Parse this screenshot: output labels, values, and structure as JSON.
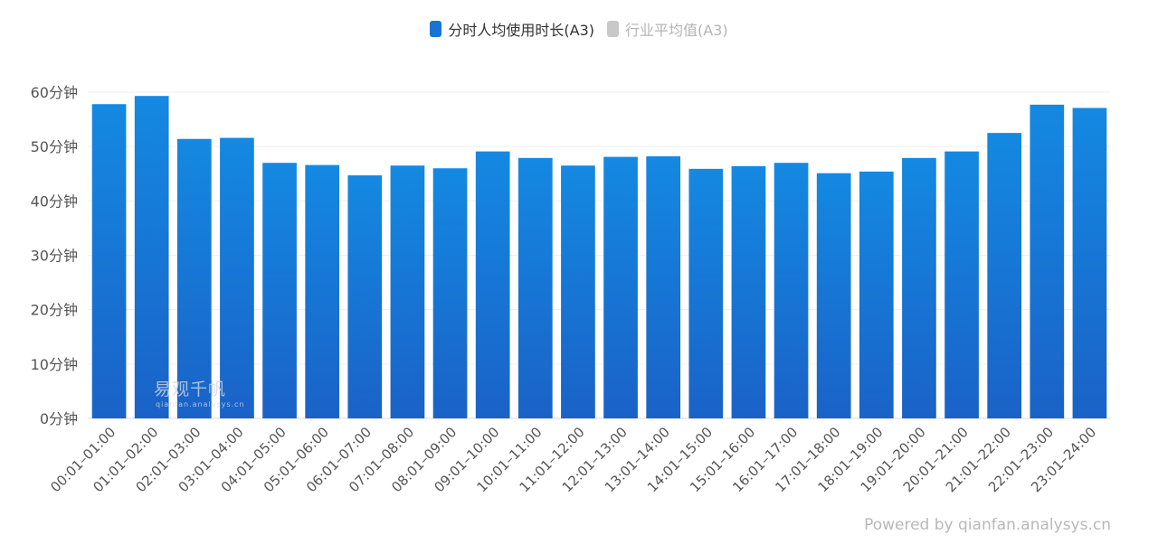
{
  "legend": {
    "items": [
      {
        "label": "分时人均使用时长(A3)",
        "color": "#1a72d6",
        "active": true
      },
      {
        "label": "行业平均值(A3)",
        "color": "#c8c8c8",
        "active": false
      }
    ]
  },
  "watermark": {
    "text": "易观千帆",
    "subtext": "qianfan.analysys.cn"
  },
  "footer": {
    "powered": "Powered by qianfan.analysys.cn"
  },
  "chart_data": {
    "type": "bar",
    "title": "",
    "xlabel": "",
    "ylabel": "",
    "ylim": [
      0,
      60
    ],
    "ytick_values": [
      0,
      10,
      20,
      30,
      40,
      50,
      60
    ],
    "ytick_labels": [
      "0分钟",
      "10分钟",
      "20分钟",
      "30分钟",
      "40分钟",
      "50分钟",
      "60分钟"
    ],
    "categories": [
      "00:01–01:00",
      "01:01–02:00",
      "02:01–03:00",
      "03:01–04:00",
      "04:01–05:00",
      "05:01–06:00",
      "06:01–07:00",
      "07:01–08:00",
      "08:01–09:00",
      "09:01–10:00",
      "10:01–11:00",
      "11:01–12:00",
      "12:01–13:00",
      "13:01–14:00",
      "14:01–15:00",
      "15:01–16:00",
      "16:01–17:00",
      "17:01–18:00",
      "18:01–19:00",
      "19:01–20:00",
      "20:01–21:00",
      "21:01–22:00",
      "22:01–23:00",
      "23:01–24:00"
    ],
    "series": [
      {
        "name": "分时人均使用时长(A3)",
        "values": [
          57.8,
          59.3,
          51.4,
          51.6,
          47.0,
          46.6,
          44.7,
          46.5,
          46.0,
          49.1,
          47.9,
          46.5,
          48.1,
          48.2,
          45.9,
          46.4,
          47.0,
          45.1,
          45.4,
          47.9,
          49.1,
          52.5,
          57.7,
          57.1
        ]
      }
    ],
    "gradient": {
      "top": "#1489e2",
      "bottom": "#1a62c7"
    }
  }
}
